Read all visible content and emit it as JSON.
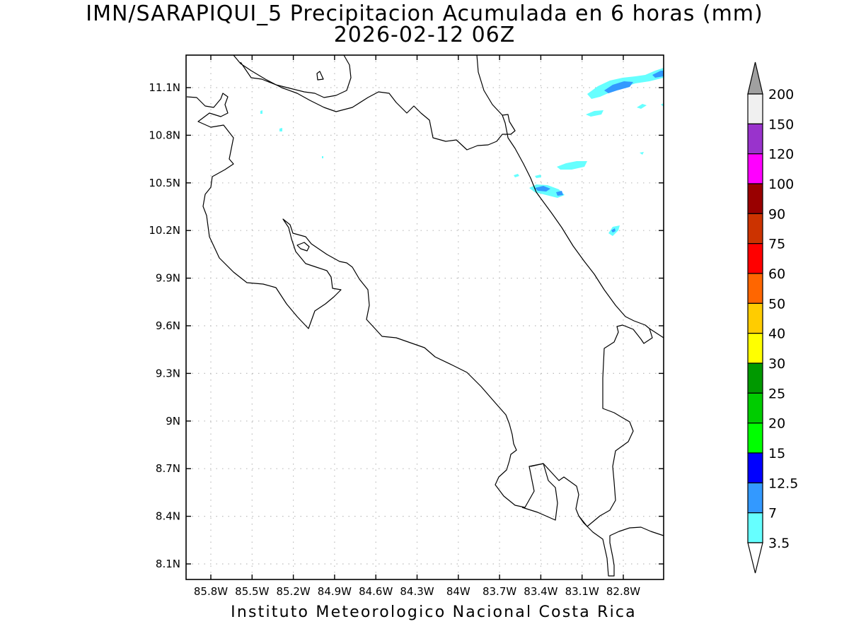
{
  "title": {
    "line1": "IMN/SARAPIQUI_5 Precipitacion Acumulada en 6 horas (mm)",
    "line2": "2026-02-12 06Z"
  },
  "credit": "Instituto Meteorologico Nacional Costa Rica",
  "map": {
    "lat_ticks": [
      "11.1N",
      "10.8N",
      "10.5N",
      "10.2N",
      "9.9N",
      "9.6N",
      "9.3N",
      "9N",
      "8.7N",
      "8.4N",
      "8.1N"
    ],
    "lon_ticks": [
      "85.8W",
      "85.5W",
      "85.2W",
      "84.9W",
      "84.6W",
      "84.3W",
      "84W",
      "83.7W",
      "83.4W",
      "83.1W",
      "82.8W"
    ],
    "grid": true
  },
  "colorbar": {
    "levels": [
      "200",
      "150",
      "120",
      "100",
      "90",
      "75",
      "60",
      "50",
      "40",
      "30",
      "25",
      "20",
      "15",
      "12.5",
      "7",
      "3.5"
    ],
    "colors": [
      "#f0f0f0",
      "#9933cc",
      "#ff00ff",
      "#990000",
      "#cc3300",
      "#ff0000",
      "#ff6600",
      "#ffcc00",
      "#ffff00",
      "#009900",
      "#00cc00",
      "#00ff00",
      "#0000ff",
      "#3399ff",
      "#66ffff"
    ],
    "overflow_color": "#a0a0a0",
    "underflow_color": "#ffffff"
  }
}
